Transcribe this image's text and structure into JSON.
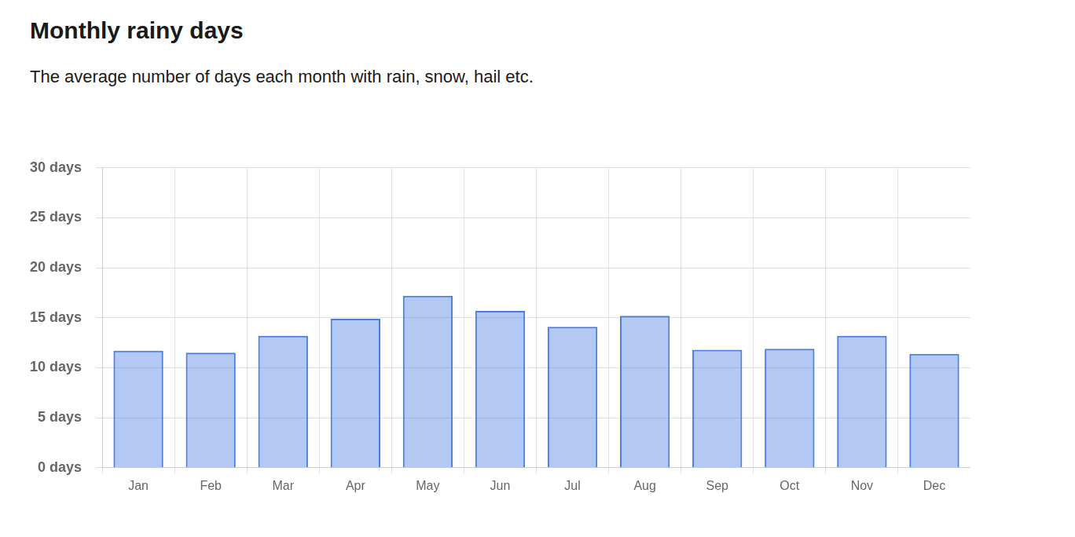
{
  "chart_data": {
    "type": "bar",
    "title": "Monthly rainy days",
    "subtitle": "The average number of days each month with rain, snow, hail etc.",
    "categories": [
      "Jan",
      "Feb",
      "Mar",
      "Apr",
      "May",
      "Jun",
      "Jul",
      "Aug",
      "Sep",
      "Oct",
      "Nov",
      "Dec"
    ],
    "values": [
      11.7,
      11.5,
      13.2,
      14.9,
      17.2,
      15.7,
      14.1,
      15.2,
      11.8,
      11.9,
      13.2,
      11.4
    ],
    "color": "#4a7de2",
    "ylim": [
      0,
      30
    ],
    "yticks": [
      {
        "value": 0,
        "label": "0 days"
      },
      {
        "value": 5,
        "label": "5 days"
      },
      {
        "value": 10,
        "label": "10 days"
      },
      {
        "value": 15,
        "label": "15 days"
      },
      {
        "value": 20,
        "label": "20 days"
      },
      {
        "value": 25,
        "label": "25 days"
      },
      {
        "value": 30,
        "label": "30 days"
      }
    ],
    "grid": true
  }
}
